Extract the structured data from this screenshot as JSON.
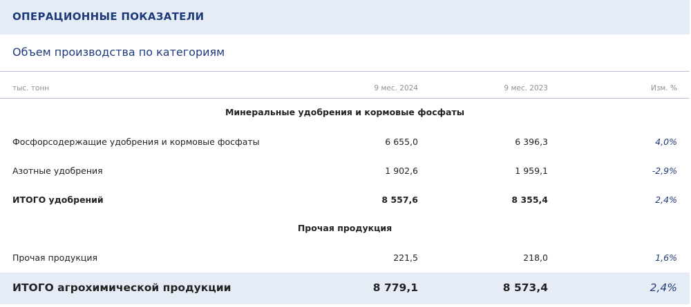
{
  "header": {
    "title": "ОПЕРАЦИОННЫЕ ПОКАЗАТЕЛИ"
  },
  "subtitle": "Объем производства по категориям",
  "table": {
    "columns": [
      "тыс. тонн",
      "9 мес. 2024",
      "9 мес. 2023",
      "Изм. %"
    ],
    "sections": [
      {
        "title": "Минеральные удобрения и кормовые фосфаты",
        "rows": [
          {
            "label": "Фосфорсодержащие удобрения и кормовые фосфаты",
            "v2024": "6 655,0",
            "v2023": "6 396,3",
            "change": "4,0%"
          },
          {
            "label": "Азотные удобрения",
            "v2024": "1 902,6",
            "v2023": "1 959,1",
            "change": "-2,9%"
          },
          {
            "label": "ИТОГО удобрений",
            "v2024": "8 557,6",
            "v2023": "8 355,4",
            "change": "2,4%"
          }
        ]
      },
      {
        "title": "Прочая продукция",
        "rows": [
          {
            "label": "Прочая продукция",
            "v2024": "221,5",
            "v2023": "218,0",
            "change": "1,6%"
          }
        ]
      }
    ],
    "total": {
      "label": "ИТОГО агрохимической продукции",
      "v2024": "8 779,1",
      "v2023": "8 573,4",
      "change": "2,4%"
    }
  },
  "colors": {
    "accent": "#1f3a7a",
    "band": "#e5ecf6"
  }
}
